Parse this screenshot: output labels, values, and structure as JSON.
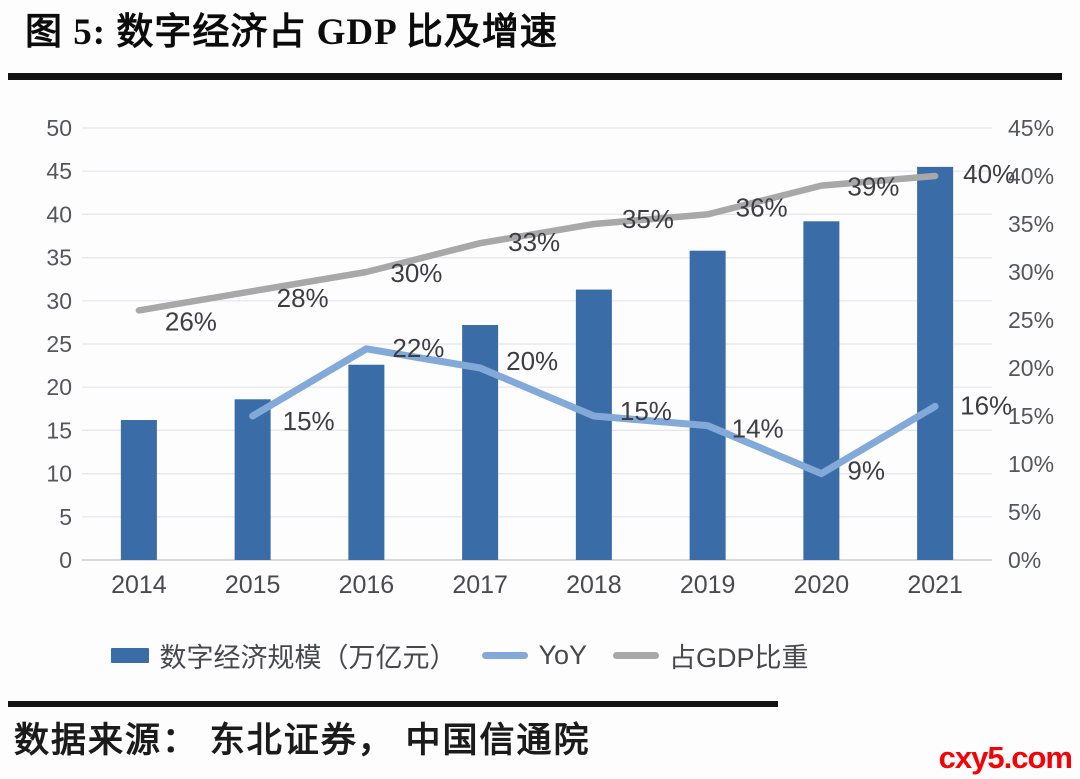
{
  "page": {
    "title": "图 5: 数字经济占 GDP 比及增速",
    "source_label": "数据来源： 东北证券， 中国信通院",
    "watermark": "cxy5.com"
  },
  "colors": {
    "bar": "#3A6CA8",
    "yoy_line": "#82A9D8",
    "gdp_line": "#A8A8A8",
    "gridline": "#E4E6EA",
    "baseline": "#C9CCD0",
    "axis_text": "#55565A",
    "data_label_text": "#3E3E42",
    "watermark_red": "#F50006"
  },
  "chart_data": {
    "type": "bar",
    "subtype": "combo-bar-line-dual-axis",
    "title": "图 5: 数字经济占 GDP 比及增速",
    "categories": [
      "2014",
      "2015",
      "2016",
      "2017",
      "2018",
      "2019",
      "2020",
      "2021"
    ],
    "series": [
      {
        "name": "数字经济规模（万亿元）",
        "type": "bar",
        "axis": "left",
        "values": [
          16.2,
          18.6,
          22.6,
          27.2,
          31.3,
          35.8,
          39.2,
          45.5
        ]
      },
      {
        "name": "YoY",
        "type": "line",
        "axis": "right",
        "values": [
          null,
          15,
          22,
          20,
          15,
          14,
          9,
          16
        ],
        "labels": [
          null,
          "15%",
          "22%",
          "20%",
          "15%",
          "14%",
          "9%",
          "16%"
        ]
      },
      {
        "name": "占GDP比重",
        "type": "line",
        "axis": "right",
        "values": [
          26,
          28,
          30,
          33,
          35,
          36,
          39,
          40
        ],
        "labels": [
          "26%",
          "28%",
          "30%",
          "33%",
          "35%",
          "36%",
          "39%",
          "40%"
        ]
      }
    ],
    "left_axis": {
      "min": 0,
      "max": 50,
      "step": 5,
      "ticks": [
        "0",
        "5",
        "10",
        "15",
        "20",
        "25",
        "30",
        "35",
        "40",
        "45",
        "50"
      ]
    },
    "right_axis": {
      "min": 0,
      "max": 45,
      "step": 5,
      "ticks": [
        "0%",
        "5%",
        "10%",
        "15%",
        "20%",
        "25%",
        "30%",
        "35%",
        "40%",
        "45%"
      ]
    },
    "grid": "horizontal",
    "legend_position": "bottom",
    "legend": [
      "数字经济规模（万亿元）",
      "YoY",
      "占GDP比重"
    ]
  }
}
